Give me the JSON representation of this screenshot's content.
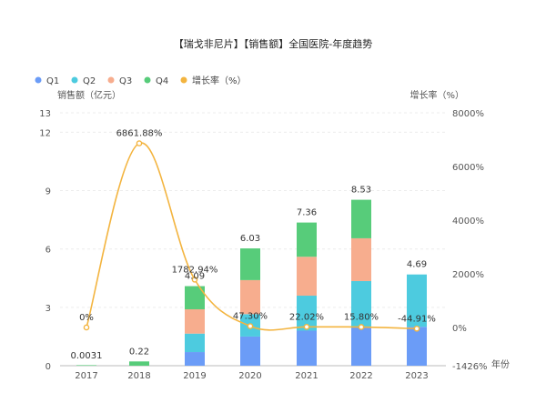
{
  "chart_data": {
    "type": "bar",
    "title": "【瑞戈非尼片】【销售额】全国医院-年度趋势",
    "legend": {
      "placement": "top-left",
      "items": [
        {
          "label": "Q1",
          "color": "#6b9cf7"
        },
        {
          "label": "Q2",
          "color": "#4dcbdf"
        },
        {
          "label": "Q3",
          "color": "#f7ad8e"
        },
        {
          "label": "Q4",
          "color": "#57cc7a"
        },
        {
          "label": "增长率（%）",
          "color": "#f3b43f"
        }
      ]
    },
    "categories": [
      "2017",
      "2018",
      "2019",
      "2020",
      "2021",
      "2022",
      "2023"
    ],
    "xlabel": "年份",
    "ylabel": "销售额（亿元）",
    "y2label": "增长率（%）",
    "ylim": [
      0,
      13
    ],
    "y_ticks": [
      "0",
      "3",
      "6",
      "9",
      "12",
      "13"
    ],
    "y2lim": [
      -1426,
      8000
    ],
    "y2_ticks": [
      "-1426%",
      "0%",
      "2000%",
      "4000%",
      "6000%",
      "8000%"
    ],
    "series": [
      {
        "name": "Q1",
        "color": "#6b9cf7",
        "values": [
          0,
          0,
          0.7,
          1.5,
          1.8,
          2.0,
          2.0
        ]
      },
      {
        "name": "Q2",
        "color": "#4dcbdf",
        "values": [
          0,
          0,
          0.95,
          1.15,
          1.8,
          2.35,
          2.69
        ]
      },
      {
        "name": "Q3",
        "color": "#f7ad8e",
        "values": [
          0,
          0,
          1.25,
          1.75,
          2.0,
          2.2,
          0
        ]
      },
      {
        "name": "Q4",
        "color": "#57cc7a",
        "values": [
          0.0031,
          0.22,
          1.19,
          1.63,
          1.76,
          1.98,
          0
        ]
      }
    ],
    "totals": [
      0.0031,
      0.22,
      4.09,
      6.03,
      7.36,
      8.53,
      4.69
    ],
    "total_labels": [
      "0.0031",
      "0.22",
      "4.09",
      "6.03",
      "7.36",
      "8.53",
      "4.69"
    ],
    "growth": {
      "name": "增长率（%）",
      "color": "#f3b43f",
      "values": [
        0,
        6861.88,
        1782.94,
        47.3,
        22.02,
        15.8,
        -44.91
      ],
      "labels": [
        "0%",
        "6861.88%",
        "1782.94%",
        "47.30%",
        "22.02%",
        "15.80%",
        "-44.91%"
      ]
    },
    "grid": true
  }
}
